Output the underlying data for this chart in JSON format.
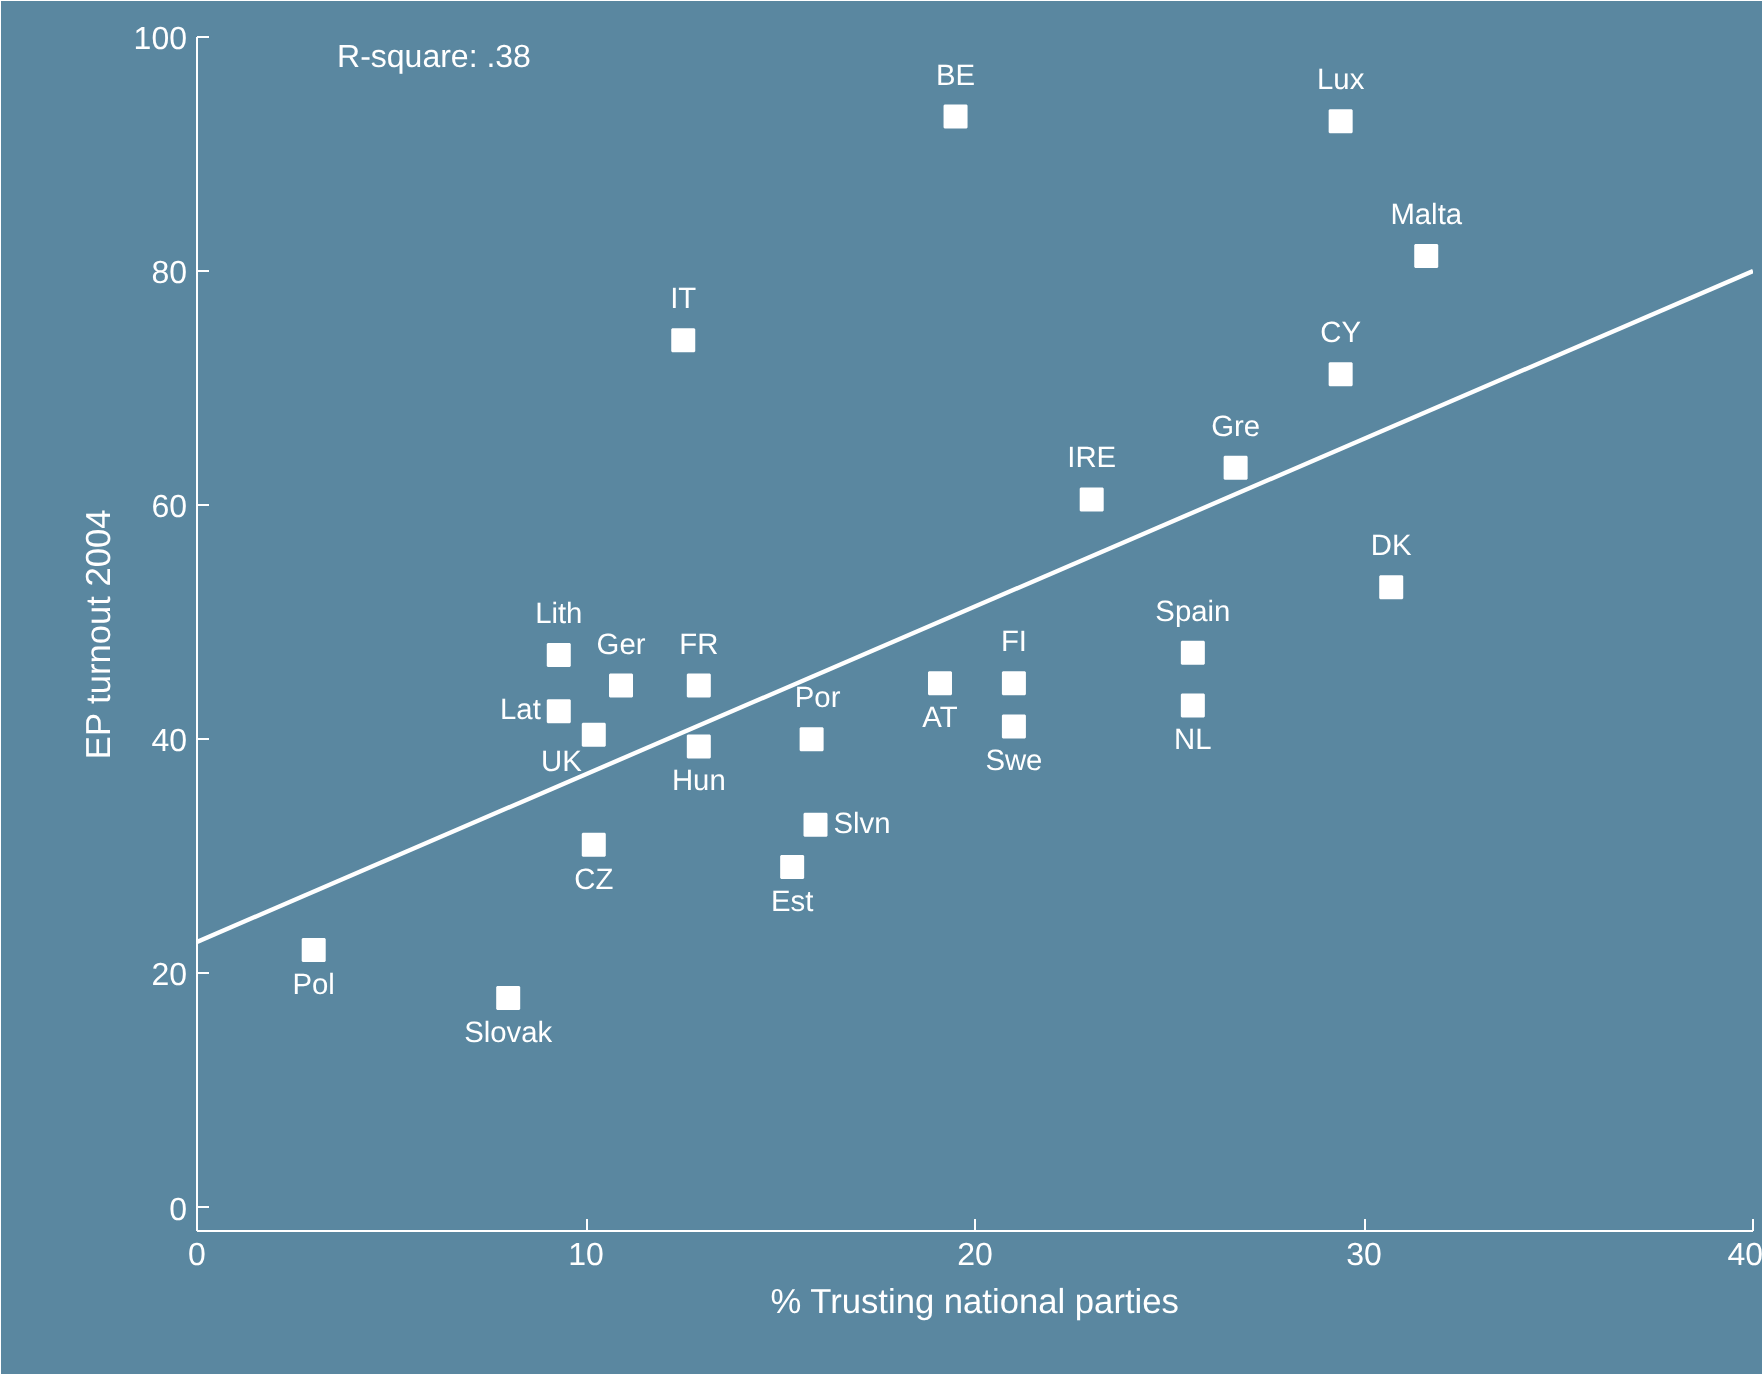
{
  "chart_data": {
    "type": "scatter",
    "xlabel": "% Trusting national parties",
    "ylabel": "EP turnout 2004",
    "xlim": [
      0,
      40
    ],
    "ylim": [
      -2,
      100
    ],
    "xticks": [
      0,
      10,
      20,
      30,
      40
    ],
    "yticks": [
      0,
      20,
      40,
      60,
      80,
      100
    ],
    "grid": false,
    "annotations": [
      "R-square: .38"
    ],
    "series": [
      {
        "marker": "square",
        "color": "#ffffff",
        "x": [
          19.5,
          29.4,
          31.6,
          12.5,
          29.4,
          26.7,
          23.0,
          30.7,
          25.6,
          9.3,
          10.9,
          12.9,
          19.1,
          21.0,
          25.6,
          9.3,
          10.2,
          15.8,
          21.0,
          12.9,
          15.9,
          10.2,
          15.3,
          3.0,
          8.0
        ],
        "values": [
          93.2,
          92.8,
          81.3,
          74.1,
          71.2,
          63.2,
          60.5,
          53.0,
          47.4,
          47.2,
          44.6,
          44.6,
          44.8,
          44.8,
          42.9,
          42.4,
          40.4,
          40.0,
          41.1,
          39.4,
          32.7,
          31.0,
          29.1,
          22.0,
          17.9
        ],
        "value_labels": [
          "BE",
          "Lux",
          "Malta",
          "IT",
          "CY",
          "Gre",
          "IRE",
          "DK",
          "Spain",
          "Lith",
          "Ger",
          "FR",
          "AT",
          "FI",
          "NL",
          "Lat",
          "UK",
          "Por",
          "Swe",
          "Hun",
          "Slvn",
          "CZ",
          "Est",
          "Pol",
          "Slovak"
        ]
      },
      {
        "type": "line",
        "color": "#ffffff",
        "line_style": "solid",
        "x": [
          0,
          40
        ],
        "values": [
          22.7,
          80.0
        ]
      }
    ]
  }
}
